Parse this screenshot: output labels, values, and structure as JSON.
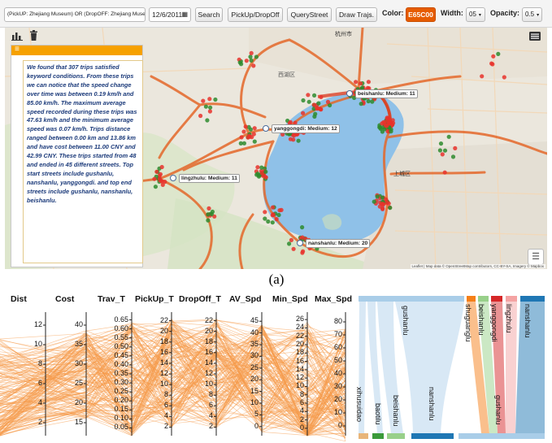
{
  "toolbar": {
    "query_value": "(PickUP: Zhejiang Museum) OR (DropOFF: Zhejiang Museum)",
    "date_value": "12/6/2011",
    "search_label": "Search",
    "pickup_dropoff_label": "PickUp/DropOff",
    "querystreet_label": "QueryStreet",
    "draw_label": "Draw Trajs.",
    "color_label": "Color:",
    "color_value": "E65C00",
    "width_label": "Width:",
    "width_value": "05",
    "opacity_label": "Opacity:",
    "opacity_value": "0.5"
  },
  "colors": {
    "accent": "#e65c00",
    "panel_header": "#f6a100",
    "route": "#e4682a",
    "lake": "#8fc1e8",
    "point_red": "#e8322b",
    "point_green": "#2e8b2e",
    "pc_lines": "#f59b4a"
  },
  "icons": {
    "chart": "bar-chart-icon",
    "trash": "trash-icon",
    "menu": "hamburger-icon",
    "layers": "layers-icon",
    "calendar": "calendar-icon"
  },
  "panel": {
    "summary": "We found that 307 trips satisfied keyword conditions. From these trips we can notice that the speed change over time was between 0.19 km/h and 85.00 km/h. The maximum average speed recorded during these trips was 47.63 km/h and the minimum average speed was 0.07 km/h. Trips distance ranged between 0.00 km and 13.86 km and have cost between 11.00 CNY and 42.99 CNY. These trips started from 48 and ended in 45 different streets. Top start streets include gushanlu, nanshanlu, yanggongdi. and top end streets include gushanlu, nanshanlu, beishanlu."
  },
  "map": {
    "labels": {
      "beishanlu": "beishanlu: Medium: 11",
      "yanggongdi": "yanggongdi: Medium: 12",
      "lingzhulu": "lingzhulu: Medium: 11",
      "nanshanlu": "nanshanlu: Medium: 20"
    },
    "attribution": "Leaflet | Map data © OpenStreetMap contributors, CC-BY-SA, Imagery © Mapbox"
  },
  "caption": "(a)",
  "parallel_coordinates": {
    "axes": [
      {
        "name": "Dist",
        "ticks": [
          "2",
          "4",
          "6",
          "8",
          "10",
          "12"
        ]
      },
      {
        "name": "Cost",
        "ticks": [
          "15",
          "20",
          "25",
          "30",
          "35",
          "40"
        ]
      },
      {
        "name": "Trav_T",
        "ticks": [
          "0.05",
          "0.10",
          "0.15",
          "0.20",
          "0.25",
          "0.30",
          "0.35",
          "0.40",
          "0.45",
          "0.50",
          "0.55",
          "0.60",
          "0.65"
        ]
      },
      {
        "name": "PickUp_T",
        "ticks": [
          "2",
          "4",
          "6",
          "8",
          "10",
          "12",
          "14",
          "16",
          "18",
          "20",
          "22"
        ]
      },
      {
        "name": "DropOff_T",
        "ticks": [
          "2",
          "4",
          "6",
          "8",
          "10",
          "12",
          "14",
          "16",
          "18",
          "20",
          "22"
        ]
      },
      {
        "name": "AV_Spd",
        "ticks": [
          "0",
          "5",
          "10",
          "15",
          "20",
          "25",
          "30",
          "35",
          "40",
          "45"
        ]
      },
      {
        "name": "Min_Spd",
        "ticks": [
          "0",
          "2",
          "4",
          "6",
          "8",
          "10",
          "12",
          "14",
          "16",
          "18",
          "20",
          "22",
          "24",
          "26"
        ]
      },
      {
        "name": "Max_Spd",
        "ticks": [
          "0",
          "10",
          "20",
          "30",
          "40",
          "50",
          "60",
          "70",
          "80"
        ]
      }
    ]
  },
  "sankey": {
    "sources": [
      "gushanlu",
      "shuguanglu",
      "beishanlu",
      "yanggongdi",
      "lingzhulu",
      "nanshanlu"
    ],
    "targets": [
      "xihusuidao",
      "baotilu",
      "beishanlu",
      "nanshanlu",
      "gushanlu"
    ]
  }
}
